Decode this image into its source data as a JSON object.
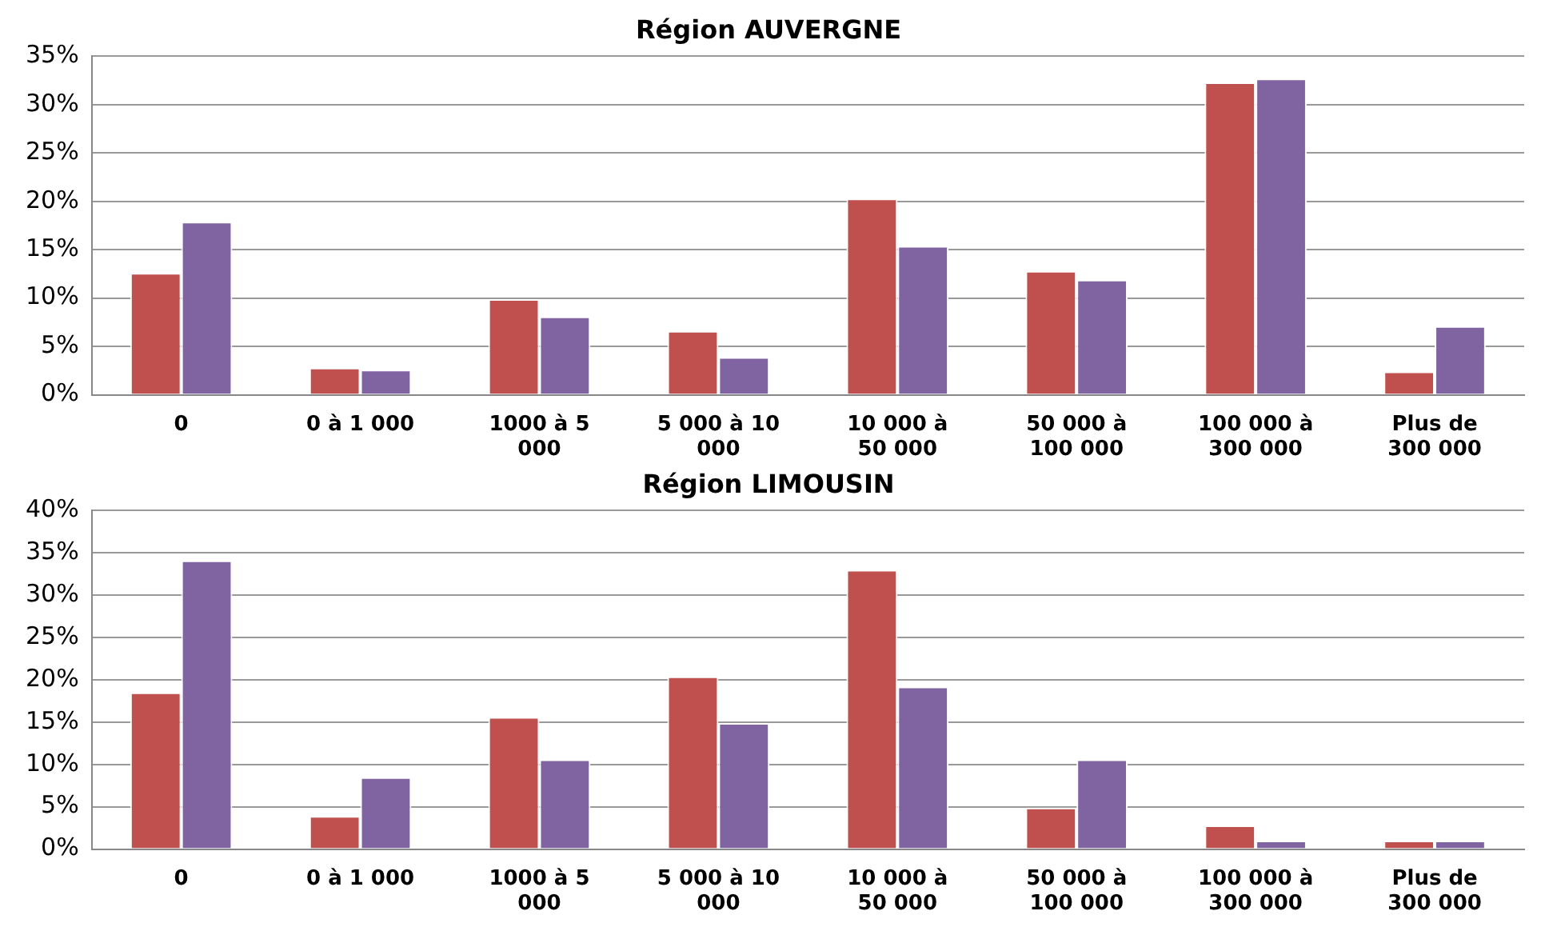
{
  "chart_data": [
    {
      "type": "bar",
      "title": "Région AUVERGNE",
      "categories": [
        "0",
        "0 à 1 000",
        "1000 à 5 000",
        "5 000 à 10 000",
        "10 000 à 50 000",
        "50 000 à 100 000",
        "100 000 à 300 000",
        "Plus de 300 000"
      ],
      "series": [
        {
          "color": "#c0504d",
          "values": [
            12.6,
            2.8,
            9.9,
            6.6,
            20.3,
            12.8,
            32.3,
            2.4
          ]
        },
        {
          "color": "#8064a2",
          "values": [
            17.9,
            2.6,
            8.1,
            3.9,
            15.4,
            11.9,
            32.7,
            7.1
          ]
        }
      ],
      "ylim": [
        0,
        35
      ],
      "yticks": [
        {
          "value": 0,
          "label": "0%"
        },
        {
          "value": 5,
          "label": "5%"
        },
        {
          "value": 10,
          "label": "10%"
        },
        {
          "value": 15,
          "label": "15%"
        },
        {
          "value": 20,
          "label": "20%"
        },
        {
          "value": 25,
          "label": "25%"
        },
        {
          "value": 30,
          "label": "30%"
        },
        {
          "value": 35,
          "label": "35%"
        }
      ],
      "grid": "y",
      "legend": false
    },
    {
      "type": "bar",
      "title": "Région LIMOUSIN",
      "categories": [
        "0",
        "0 à 1 000",
        "1000 à 5 000",
        "5 000 à 10 000",
        "10 000 à 50 000",
        "50 000 à 100 000",
        "100 000 à 300 000",
        "Plus de 300 000"
      ],
      "series": [
        {
          "color": "#c0504d",
          "values": [
            18.5,
            3.9,
            15.6,
            20.4,
            33.0,
            4.9,
            2.8,
            1.0
          ]
        },
        {
          "color": "#8064a2",
          "values": [
            34.1,
            8.5,
            10.6,
            14.9,
            19.2,
            10.6,
            1.0,
            1.0
          ]
        }
      ],
      "ylim": [
        0,
        40
      ],
      "yticks": [
        {
          "value": 0,
          "label": "0%"
        },
        {
          "value": 5,
          "label": "5%"
        },
        {
          "value": 10,
          "label": "10%"
        },
        {
          "value": 15,
          "label": "15%"
        },
        {
          "value": 20,
          "label": "20%"
        },
        {
          "value": 25,
          "label": "25%"
        },
        {
          "value": 30,
          "label": "30%"
        },
        {
          "value": 35,
          "label": "35%"
        },
        {
          "value": 40,
          "label": "40%"
        }
      ],
      "grid": "y",
      "legend": false
    }
  ]
}
